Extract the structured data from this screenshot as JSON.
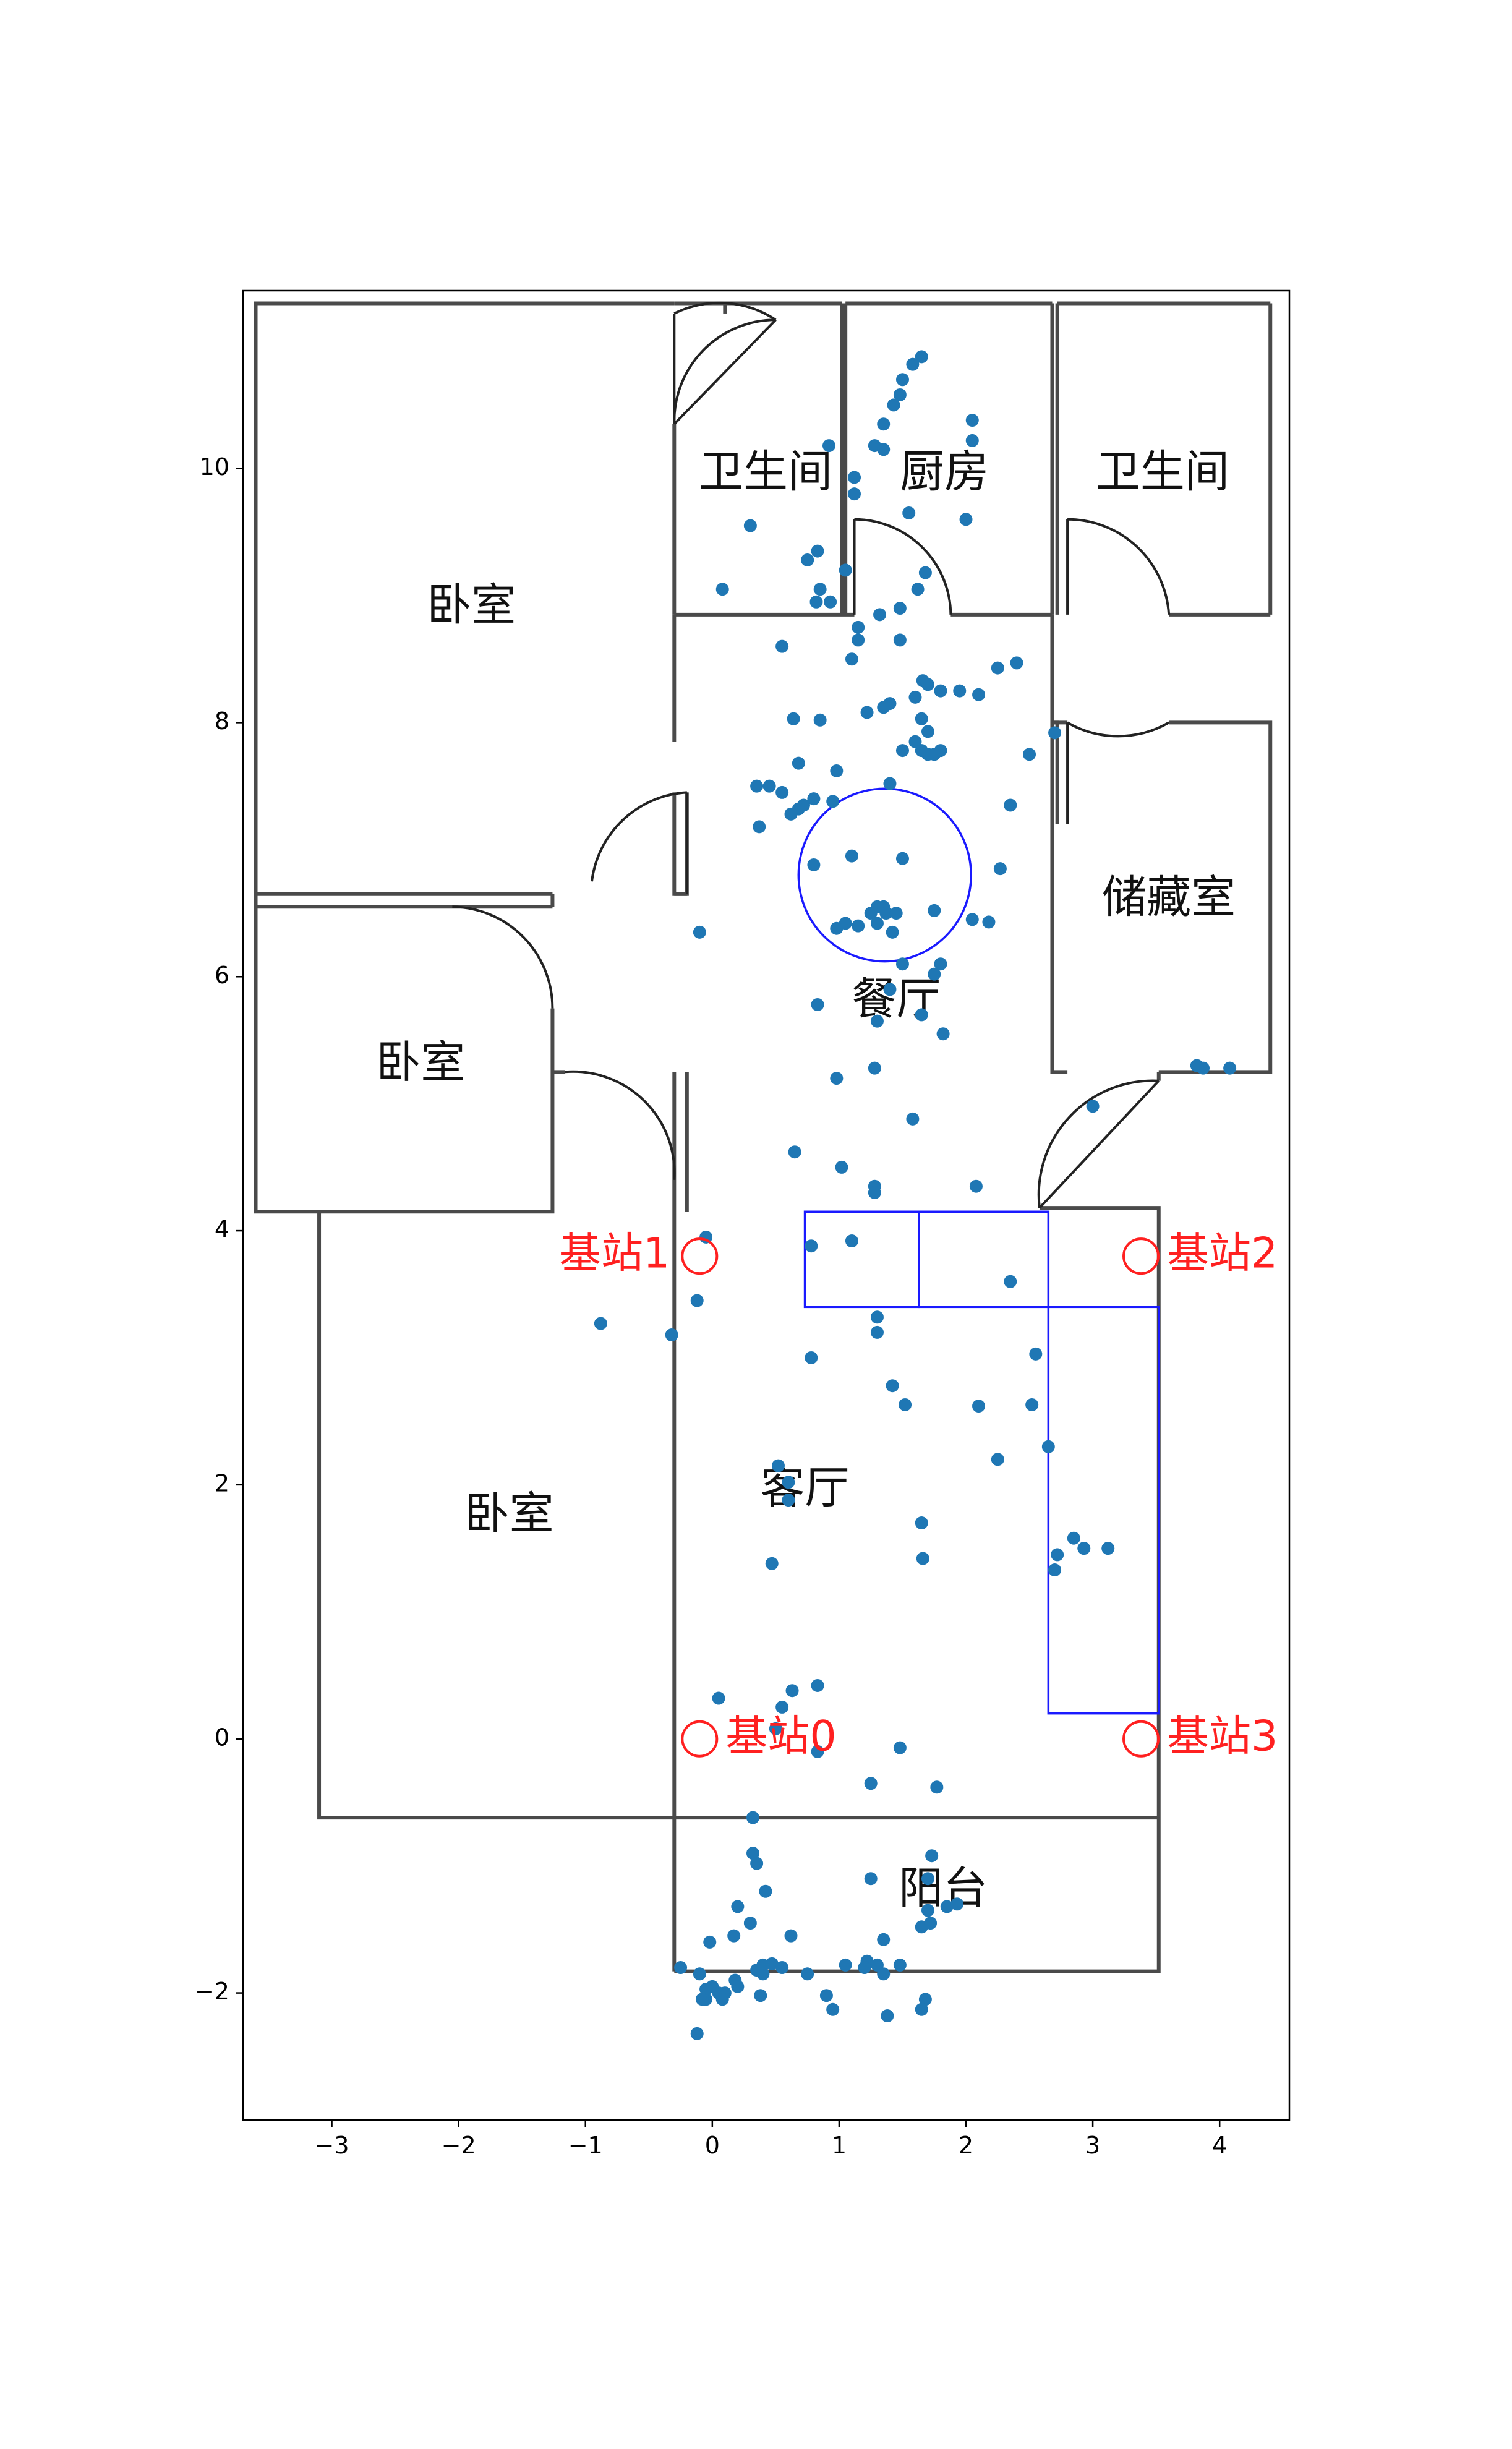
{
  "chart_data": {
    "type": "scatter",
    "title": "",
    "xlabel": "",
    "ylabel": "",
    "xlim": [
      -3.7,
      4.55
    ],
    "ylim": [
      -3.0,
      11.4
    ],
    "x_ticks": [
      -3,
      -2,
      -1,
      0,
      1,
      2,
      3,
      4
    ],
    "y_ticks": [
      -2,
      0,
      2,
      4,
      6,
      8,
      10
    ],
    "x_tick_labels": [
      "−3",
      "−2",
      "−1",
      "0",
      "1",
      "2",
      "3",
      "4"
    ],
    "y_tick_labels": [
      "−2",
      "0",
      "2",
      "4",
      "6",
      "8",
      "10"
    ],
    "grid": false,
    "colors": {
      "points": "#1f77b4",
      "stations": "#ff2020",
      "zones": "#1a1aff",
      "walls": "#4a4a4a"
    },
    "rooms": [
      {
        "label": "卧室",
        "x": -1.9,
        "y": 8.9
      },
      {
        "label": "卧室",
        "x": -2.3,
        "y": 5.3
      },
      {
        "label": "卧室",
        "x": -1.6,
        "y": 1.75
      },
      {
        "label": "卫生间",
        "x": 0.42,
        "y": 9.95
      },
      {
        "label": "厨房",
        "x": 1.83,
        "y": 9.95
      },
      {
        "label": "卫生间",
        "x": 3.55,
        "y": 9.95
      },
      {
        "label": "储藏室",
        "x": 3.6,
        "y": 6.6
      },
      {
        "label": "餐厅",
        "x": 1.45,
        "y": 5.8
      },
      {
        "label": "客厅",
        "x": 0.73,
        "y": 1.95
      },
      {
        "label": "阳台",
        "x": 1.82,
        "y": -1.2
      }
    ],
    "base_stations": [
      {
        "label": "基站0",
        "x": -0.1,
        "y": 0.0,
        "label_side": "right"
      },
      {
        "label": "基站1",
        "x": -0.1,
        "y": 3.8,
        "label_side": "left"
      },
      {
        "label": "基站2",
        "x": 3.38,
        "y": 3.8,
        "label_side": "right"
      },
      {
        "label": "基站3",
        "x": 3.38,
        "y": 0.0,
        "label_side": "right"
      }
    ],
    "zones": {
      "circle": {
        "cx": 1.36,
        "cy": 6.8,
        "r": 0.68
      },
      "rects": [
        {
          "x0": 0.73,
          "x1": 1.63,
          "y0": 3.4,
          "y1": 4.15
        },
        {
          "x0": 1.63,
          "x1": 2.65,
          "y0": 3.4,
          "y1": 4.15
        },
        {
          "x0": 2.65,
          "x1": 3.52,
          "y0": 0.2,
          "y1": 3.4
        }
      ]
    },
    "series": [
      {
        "points": [
          [
            1.65,
            10.88
          ],
          [
            1.58,
            10.82
          ],
          [
            1.5,
            10.7
          ],
          [
            1.48,
            10.58
          ],
          [
            1.43,
            10.5
          ],
          [
            1.35,
            10.35
          ],
          [
            2.05,
            10.38
          ],
          [
            2.05,
            10.22
          ],
          [
            1.28,
            10.18
          ],
          [
            1.35,
            10.15
          ],
          [
            0.92,
            10.18
          ],
          [
            1.12,
            9.93
          ],
          [
            1.12,
            9.8
          ],
          [
            1.55,
            9.65
          ],
          [
            2.0,
            9.6
          ],
          [
            0.3,
            9.55
          ],
          [
            0.83,
            9.35
          ],
          [
            0.75,
            9.28
          ],
          [
            1.05,
            9.2
          ],
          [
            1.68,
            9.18
          ],
          [
            1.62,
            9.05
          ],
          [
            0.08,
            9.05
          ],
          [
            0.85,
            9.05
          ],
          [
            0.82,
            8.95
          ],
          [
            0.93,
            8.95
          ],
          [
            1.48,
            8.9
          ],
          [
            1.32,
            8.85
          ],
          [
            1.15,
            8.75
          ],
          [
            1.15,
            8.65
          ],
          [
            1.48,
            8.65
          ],
          [
            0.55,
            8.6
          ],
          [
            1.1,
            8.5
          ],
          [
            1.66,
            8.33
          ],
          [
            1.7,
            8.3
          ],
          [
            1.8,
            8.25
          ],
          [
            1.95,
            8.25
          ],
          [
            2.1,
            8.22
          ],
          [
            2.25,
            8.43
          ],
          [
            2.4,
            8.47
          ],
          [
            1.6,
            8.2
          ],
          [
            1.4,
            8.15
          ],
          [
            1.35,
            8.12
          ],
          [
            1.22,
            8.08
          ],
          [
            0.85,
            8.02
          ],
          [
            0.64,
            8.03
          ],
          [
            1.65,
            8.03
          ],
          [
            1.7,
            7.93
          ],
          [
            1.6,
            7.85
          ],
          [
            1.5,
            7.78
          ],
          [
            1.65,
            7.78
          ],
          [
            1.8,
            7.78
          ],
          [
            1.7,
            7.75
          ],
          [
            1.75,
            7.75
          ],
          [
            2.5,
            7.75
          ],
          [
            2.7,
            7.92
          ],
          [
            0.68,
            7.68
          ],
          [
            0.98,
            7.62
          ],
          [
            0.35,
            7.5
          ],
          [
            0.45,
            7.5
          ],
          [
            0.55,
            7.45
          ],
          [
            0.8,
            7.4
          ],
          [
            0.72,
            7.35
          ],
          [
            0.68,
            7.32
          ],
          [
            0.62,
            7.28
          ],
          [
            0.95,
            7.38
          ],
          [
            1.4,
            7.52
          ],
          [
            2.35,
            7.35
          ],
          [
            0.37,
            7.18
          ],
          [
            1.1,
            6.95
          ],
          [
            1.5,
            6.93
          ],
          [
            0.8,
            6.88
          ],
          [
            2.27,
            6.85
          ],
          [
            1.3,
            6.55
          ],
          [
            1.35,
            6.55
          ],
          [
            1.25,
            6.5
          ],
          [
            1.37,
            6.5
          ],
          [
            1.45,
            6.5
          ],
          [
            1.75,
            6.52
          ],
          [
            1.05,
            6.42
          ],
          [
            1.15,
            6.4
          ],
          [
            1.3,
            6.42
          ],
          [
            1.42,
            6.35
          ],
          [
            0.98,
            6.38
          ],
          [
            2.05,
            6.45
          ],
          [
            2.18,
            6.43
          ],
          [
            -0.1,
            6.35
          ],
          [
            1.5,
            6.1
          ],
          [
            1.8,
            6.1
          ],
          [
            1.75,
            6.02
          ],
          [
            1.4,
            5.9
          ],
          [
            0.83,
            5.78
          ],
          [
            1.65,
            5.7
          ],
          [
            1.3,
            5.65
          ],
          [
            1.82,
            5.55
          ],
          [
            1.28,
            5.28
          ],
          [
            0.98,
            5.2
          ],
          [
            3.82,
            5.3
          ],
          [
            3.87,
            5.28
          ],
          [
            4.08,
            5.28
          ],
          [
            3.0,
            4.98
          ],
          [
            1.58,
            4.88
          ],
          [
            0.65,
            4.62
          ],
          [
            1.02,
            4.5
          ],
          [
            1.28,
            4.35
          ],
          [
            1.28,
            4.3
          ],
          [
            2.08,
            4.35
          ],
          [
            -0.05,
            3.95
          ],
          [
            0.78,
            3.88
          ],
          [
            1.1,
            3.92
          ],
          [
            2.35,
            3.6
          ],
          [
            -0.12,
            3.45
          ],
          [
            1.3,
            3.32
          ],
          [
            -0.88,
            3.27
          ],
          [
            -0.32,
            3.18
          ],
          [
            1.3,
            3.2
          ],
          [
            2.55,
            3.03
          ],
          [
            0.78,
            3.0
          ],
          [
            1.42,
            2.78
          ],
          [
            1.52,
            2.63
          ],
          [
            2.1,
            2.62
          ],
          [
            2.52,
            2.63
          ],
          [
            2.65,
            2.3
          ],
          [
            2.25,
            2.2
          ],
          [
            0.52,
            2.15
          ],
          [
            0.6,
            2.02
          ],
          [
            0.6,
            1.88
          ],
          [
            1.65,
            1.7
          ],
          [
            2.85,
            1.58
          ],
          [
            2.93,
            1.5
          ],
          [
            3.12,
            1.5
          ],
          [
            2.72,
            1.45
          ],
          [
            2.7,
            1.33
          ],
          [
            1.66,
            1.42
          ],
          [
            0.47,
            1.38
          ],
          [
            0.83,
            0.42
          ],
          [
            0.63,
            0.38
          ],
          [
            0.05,
            0.32
          ],
          [
            0.55,
            0.25
          ],
          [
            0.5,
            0.08
          ],
          [
            0.83,
            -0.1
          ],
          [
            1.48,
            -0.07
          ],
          [
            1.25,
            -0.35
          ],
          [
            1.77,
            -0.38
          ],
          [
            0.32,
            -0.62
          ],
          [
            0.32,
            -0.9
          ],
          [
            1.73,
            -0.92
          ],
          [
            0.35,
            -0.98
          ],
          [
            0.42,
            -1.2
          ],
          [
            1.25,
            -1.1
          ],
          [
            1.7,
            -1.1
          ],
          [
            1.7,
            -1.35
          ],
          [
            1.85,
            -1.32
          ],
          [
            1.93,
            -1.3
          ],
          [
            1.65,
            -1.48
          ],
          [
            1.72,
            -1.45
          ],
          [
            0.2,
            -1.32
          ],
          [
            0.3,
            -1.45
          ],
          [
            0.17,
            -1.55
          ],
          [
            0.62,
            -1.55
          ],
          [
            1.35,
            -1.58
          ],
          [
            -0.02,
            -1.6
          ],
          [
            1.05,
            -1.78
          ],
          [
            1.22,
            -1.75
          ],
          [
            1.3,
            -1.78
          ],
          [
            1.2,
            -1.8
          ],
          [
            1.48,
            -1.78
          ],
          [
            1.35,
            -1.85
          ],
          [
            0.4,
            -1.78
          ],
          [
            0.47,
            -1.77
          ],
          [
            0.55,
            -1.8
          ],
          [
            0.75,
            -1.85
          ],
          [
            0.35,
            -1.82
          ],
          [
            0.4,
            -1.85
          ],
          [
            -0.25,
            -1.8
          ],
          [
            -0.1,
            -1.85
          ],
          [
            0.18,
            -1.9
          ],
          [
            0.2,
            -1.95
          ],
          [
            0.0,
            -1.95
          ],
          [
            -0.05,
            -1.97
          ],
          [
            0.05,
            -2.0
          ],
          [
            0.1,
            -2.0
          ],
          [
            0.08,
            -2.05
          ],
          [
            -0.05,
            -2.05
          ],
          [
            -0.08,
            -2.05
          ],
          [
            0.38,
            -2.02
          ],
          [
            0.9,
            -2.02
          ],
          [
            0.95,
            -2.13
          ],
          [
            1.68,
            -2.05
          ],
          [
            1.65,
            -2.13
          ],
          [
            1.38,
            -2.18
          ],
          [
            -0.12,
            -2.32
          ]
        ]
      }
    ]
  }
}
